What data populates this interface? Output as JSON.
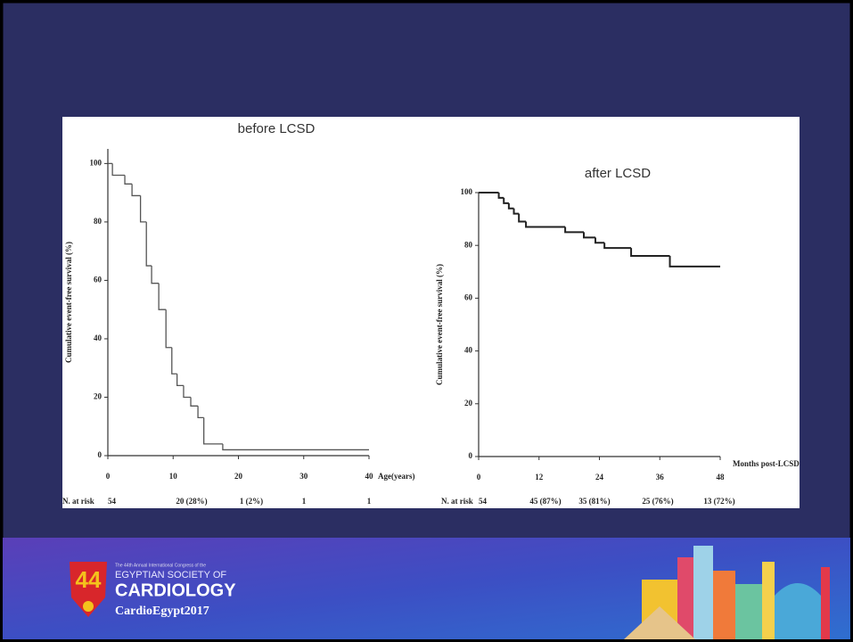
{
  "chart_data": [
    {
      "type": "step",
      "title": "before LCSD",
      "y_label": "Cumulative event-free survival (%)",
      "x_label": "Age(years)",
      "x": [
        0,
        0.7,
        2.6,
        3.7,
        5,
        5.9,
        6.7,
        7.8,
        8.9,
        9.8,
        10.6,
        11.6,
        12.7,
        13.8,
        14.7,
        17.6,
        40
      ],
      "values": [
        100,
        96,
        93,
        89,
        80,
        65,
        59,
        50,
        37,
        28,
        24,
        20,
        17,
        13,
        4,
        2,
        2
      ],
      "color": "#555555",
      "xlim": [
        0,
        40
      ],
      "xticks": [
        0,
        10,
        20,
        30,
        40
      ],
      "ylim": [
        0,
        105
      ],
      "yticks": [
        0,
        20,
        40,
        60,
        80,
        100
      ],
      "grid": false,
      "risk_title": "N. at risk",
      "at_risk": [
        "54",
        "20 (28%)",
        "1 (2%)",
        "1",
        "1"
      ]
    },
    {
      "type": "step",
      "title": "after LCSD",
      "y_label": "Cumulative event-free survival (%)",
      "x_label": "Months post-LCSD",
      "x": [
        0,
        4,
        5,
        6,
        7,
        8,
        9.4,
        17.2,
        20.9,
        23.2,
        25,
        30.3,
        38,
        48
      ],
      "values": [
        100,
        98,
        96,
        94,
        92,
        89,
        87,
        85,
        83,
        81,
        79,
        76,
        72,
        72
      ],
      "color": "#222222",
      "xlim": [
        0,
        48
      ],
      "xticks": [
        0,
        12,
        24,
        36,
        48
      ],
      "ylim": [
        0,
        100
      ],
      "yticks": [
        0,
        20,
        40,
        60,
        80,
        100
      ],
      "grid": false,
      "risk_title": "N. at risk",
      "at_risk": [
        "54",
        "45 (87%)",
        "35 (81%)",
        "25 (76%)",
        "13 (72%)"
      ]
    }
  ],
  "footer": {
    "logo_number": "44",
    "caption": "The 44th Annual International Congress of the",
    "society": "EGYPTIAN SOCIETY OF",
    "name": "CARDIOLOGY",
    "event": "CardioEgypt2017"
  }
}
